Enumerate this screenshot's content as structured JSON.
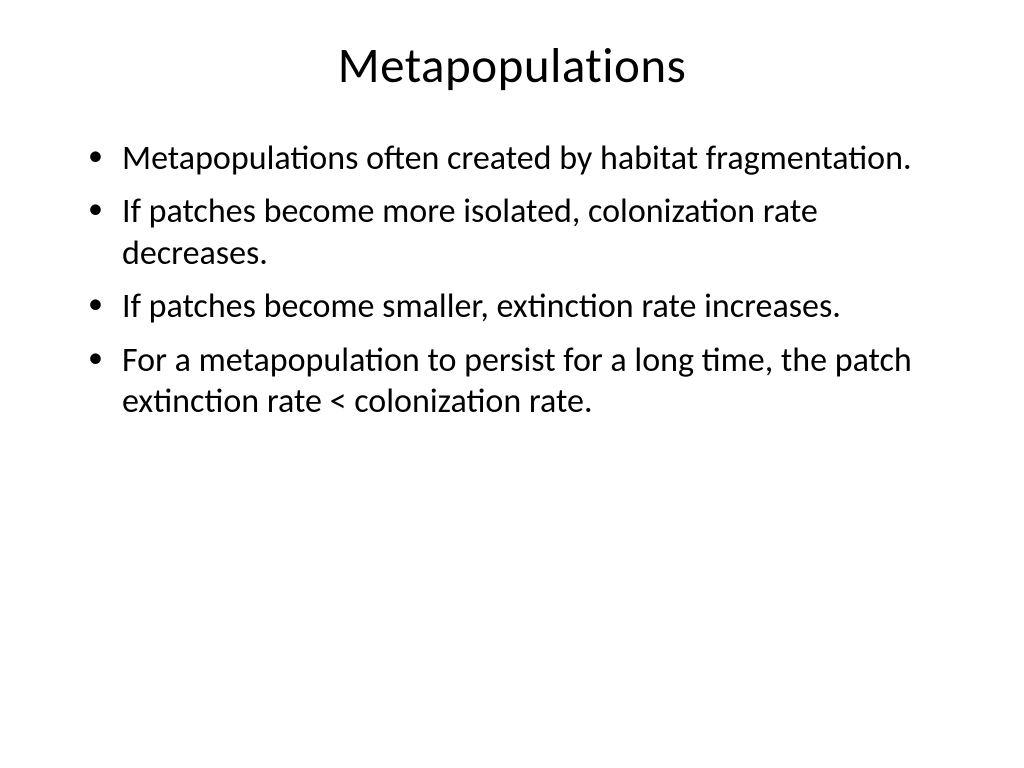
{
  "slide": {
    "title": "Metapopulations",
    "bullets": [
      "Metapopulations often created by habitat fragmentation.",
      "If patches become more isolated, colonization rate decreases.",
      "If patches become smaller, extinction rate increases.",
      "For a metapopulation to persist for a long time, the patch extinction rate < colonization rate."
    ],
    "title_fontsize": 49,
    "bullet_fontsize": 34,
    "background_color": "#ffffff",
    "text_color": "#000000",
    "font_family": "Calibri"
  }
}
